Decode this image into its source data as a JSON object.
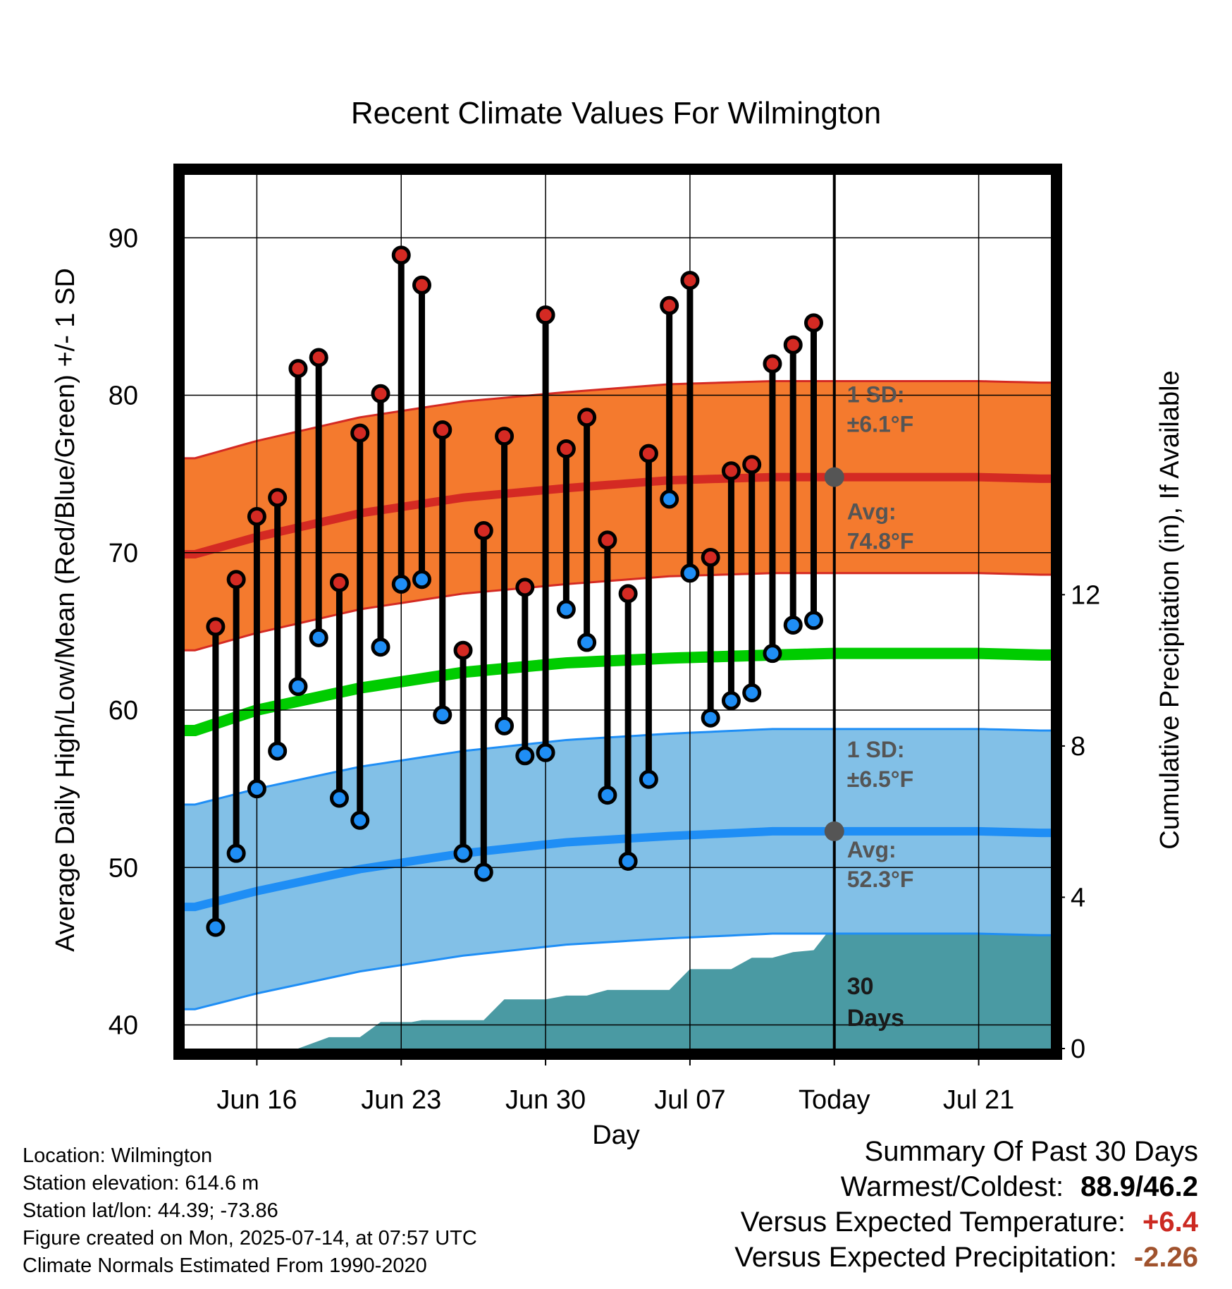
{
  "chart_data": {
    "type": "line",
    "title": "Recent Climate Values For Wilmington",
    "xlabel": "Day",
    "ylabel": "Average Daily High/Low/Mean (Red/Blue/Green) +/- 1 SD",
    "y2label": "Cumulative Precipitation (in), If Available",
    "ylim": [
      38.5,
      94
    ],
    "y2lim": [
      0,
      23.1
    ],
    "yticks": [
      "40",
      "50",
      "60",
      "70",
      "80",
      "90"
    ],
    "y2ticks": [
      "0",
      "4",
      "8",
      "12"
    ],
    "xlim": [
      -3.5,
      38.5
    ],
    "xticks": [
      {
        "x": 0,
        "label": "Jun 16"
      },
      {
        "x": 7,
        "label": "Jun 23"
      },
      {
        "x": 14,
        "label": "Jun 30"
      },
      {
        "x": 21,
        "label": "Jul 07"
      },
      {
        "x": 28,
        "label": "Today"
      },
      {
        "x": 35,
        "label": "Jul 21"
      }
    ],
    "today_x": 28,
    "grid": true,
    "days": [
      -2,
      -1,
      0,
      1,
      2,
      3,
      4,
      5,
      6,
      7,
      8,
      9,
      10,
      11,
      12,
      13,
      14,
      15,
      16,
      17,
      18,
      19,
      20,
      21,
      22,
      23,
      24,
      25,
      26,
      27
    ],
    "highs": [
      65.3,
      68.3,
      72.3,
      73.5,
      81.7,
      82.4,
      68.1,
      77.6,
      80.1,
      88.9,
      87.0,
      77.8,
      63.8,
      71.4,
      77.4,
      67.8,
      85.1,
      76.6,
      78.6,
      70.8,
      67.4,
      76.3,
      85.7,
      87.3,
      69.7,
      75.2,
      75.6,
      82.0,
      83.2,
      84.6
    ],
    "lows": [
      46.2,
      50.9,
      55.0,
      57.4,
      61.5,
      64.6,
      54.4,
      53.0,
      64.0,
      68.0,
      68.3,
      59.7,
      50.9,
      49.7,
      59.0,
      57.1,
      57.3,
      66.4,
      64.3,
      54.6,
      50.4,
      55.6,
      73.4,
      68.7,
      59.5,
      60.6,
      61.1,
      63.6,
      65.4,
      65.7
    ],
    "normal_x": [
      -3,
      0,
      5,
      10,
      15,
      20,
      25,
      28,
      30,
      35,
      38
    ],
    "normal_high": [
      69.9,
      71.0,
      72.5,
      73.5,
      74.1,
      74.6,
      74.8,
      74.8,
      74.8,
      74.8,
      74.7
    ],
    "normal_low": [
      47.5,
      48.5,
      49.9,
      50.9,
      51.6,
      52.0,
      52.3,
      52.3,
      52.3,
      52.3,
      52.2
    ],
    "normal_mean": [
      58.7,
      60.0,
      61.4,
      62.4,
      63.0,
      63.3,
      63.5,
      63.6,
      63.6,
      63.6,
      63.5
    ],
    "sd_high": 6.1,
    "sd_low": 6.5,
    "precip_steps": [
      [
        -3,
        0
      ],
      [
        2,
        0
      ],
      [
        3.5,
        0.3
      ],
      [
        5,
        0.3
      ],
      [
        6,
        0.7
      ],
      [
        7.5,
        0.7
      ],
      [
        8,
        0.75
      ],
      [
        11,
        0.75
      ],
      [
        12,
        1.3
      ],
      [
        14,
        1.3
      ],
      [
        15,
        1.4
      ],
      [
        16,
        1.4
      ],
      [
        17,
        1.55
      ],
      [
        20,
        1.55
      ],
      [
        21,
        2.1
      ],
      [
        23,
        2.1
      ],
      [
        24,
        2.4
      ],
      [
        25,
        2.4
      ],
      [
        26,
        2.55
      ],
      [
        27,
        2.6
      ],
      [
        28,
        3.3
      ],
      [
        38.5,
        3.3
      ]
    ],
    "annotations": {
      "high_sd_label": "1 SD:",
      "high_sd_value": "±6.1°F",
      "high_avg_label": "Avg:",
      "high_avg_value": "74.8°F",
      "low_sd_label": "1 SD:",
      "low_sd_value": "±6.5°F",
      "low_avg_label": "Avg:",
      "low_avg_value": "52.3°F",
      "days_count": "30",
      "days_word": "Days"
    },
    "colors": {
      "high_band": "#f47a2e",
      "high_line": "#d42a23",
      "high_point": "#d42a23",
      "low_band": "#82c0e7",
      "low_line": "#1f8ef5",
      "low_point": "#1f8ef5",
      "mean_line": "#00cc00",
      "precip": "#4a9aa3",
      "today_marker": "#555555"
    }
  },
  "footer": {
    "location": "Location: Wilmington",
    "elevation": "Station elevation: 614.6 m",
    "latlon": "Station lat/lon: 44.39; -73.86",
    "created": "Figure created on Mon, 2025-07-14, at 07:57 UTC",
    "normals": "Climate Normals Estimated From 1990-2020"
  },
  "summary": {
    "title": "Summary Of Past 30 Days",
    "warm_cold_label": "Warmest/Coldest:",
    "warm_cold_value": "88.9/46.2",
    "temp_label": "Versus Expected Temperature:",
    "temp_value": "+6.4",
    "temp_color": "#cc2a22",
    "precip_label": "Versus Expected Precipitation:",
    "precip_value": "-2.26",
    "precip_color": "#a0522d"
  }
}
